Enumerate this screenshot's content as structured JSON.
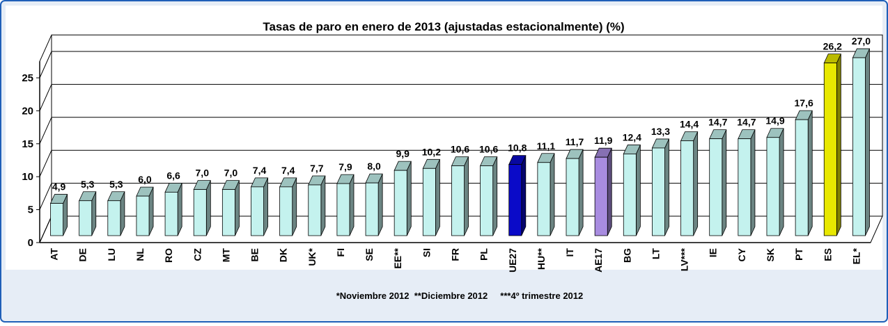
{
  "chart_data": {
    "type": "bar3d",
    "title": "Tasas de paro en enero de 2013 (ajustadas estacionalmente) (%)",
    "footnote": "*Noviembre 2012  **Diciembre 2012     ***4º trimestre 2012",
    "categories": [
      "AT",
      "DE",
      "LU",
      "NL",
      "RO",
      "CZ",
      "MT",
      "BE",
      "DK",
      "UK*",
      "FI",
      "SE",
      "EE**",
      "SI",
      "FR",
      "PL",
      "UE27",
      "HU**",
      "IT",
      "AE17",
      "BG",
      "LT",
      "LV***",
      "IE",
      "CY",
      "SK",
      "PT",
      "ES",
      "EL*"
    ],
    "values": [
      4.9,
      5.3,
      5.3,
      6.0,
      6.6,
      7.0,
      7.0,
      7.4,
      7.4,
      7.7,
      7.9,
      8.0,
      9.9,
      10.2,
      10.6,
      10.6,
      10.8,
      11.1,
      11.7,
      11.9,
      12.4,
      13.3,
      14.4,
      14.7,
      14.7,
      14.9,
      17.6,
      26.2,
      27.0
    ],
    "value_labels": [
      "4,9",
      "5,3",
      "5,3",
      "6,0",
      "6,6",
      "7,0",
      "7,0",
      "7,4",
      "7,4",
      "7,7",
      "7,9",
      "8,0",
      "9,9",
      "10,2",
      "10,6",
      "10,6",
      "10,8",
      "11,1",
      "11,7",
      "11,9",
      "12,4",
      "13,3",
      "14,4",
      "14,7",
      "14,7",
      "14,9",
      "17,6",
      "26,2",
      "27,0"
    ],
    "colors": [
      "#c4f2ee",
      "#c4f2ee",
      "#c4f2ee",
      "#c4f2ee",
      "#c4f2ee",
      "#c4f2ee",
      "#c4f2ee",
      "#c4f2ee",
      "#c4f2ee",
      "#c4f2ee",
      "#c4f2ee",
      "#c4f2ee",
      "#c4f2ee",
      "#c4f2ee",
      "#c4f2ee",
      "#c4f2ee",
      "#0a0ac8",
      "#c4f2ee",
      "#c4f2ee",
      "#a88ce0",
      "#c4f2ee",
      "#c4f2ee",
      "#c4f2ee",
      "#c4f2ee",
      "#c4f2ee",
      "#c4f2ee",
      "#c4f2ee",
      "#e8e800",
      "#c4f2ee"
    ],
    "ylim": [
      0,
      27.5
    ],
    "yticks": [
      0,
      5,
      10,
      15,
      20,
      25
    ],
    "grid": true
  }
}
